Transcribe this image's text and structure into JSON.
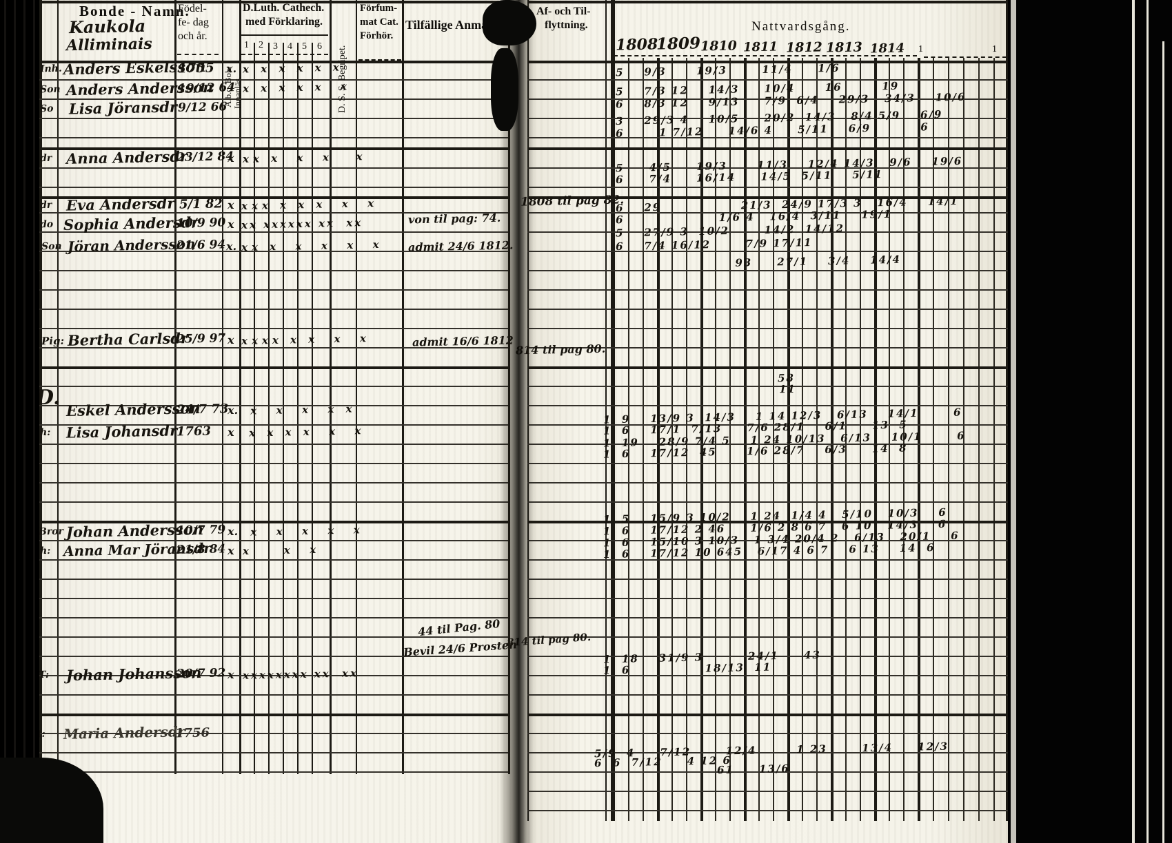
{
  "doc": {
    "headers": {
      "name_col": "Bonde - Namn.",
      "birth_l1": "Födel-",
      "birth_l2": "fe- dag",
      "birth_l3": "och år.",
      "abc_l1": "A.b.c. Bok.",
      "abc_l2": "Innanläs.",
      "cat_l1": "D.Luth. Cathech.",
      "cat_l2": "med Förklaring.",
      "dss": "D. S. S. Begripet.",
      "missed_l1": "Förfum-",
      "missed_l2": "mat Cat.",
      "missed_l3": "Förhör.",
      "remarks": "Tilfällige Anmärkningar",
      "moving_l1": "Af- och Til-",
      "moving_l2": "flyttning.",
      "communion": "Nattvardsgång."
    },
    "grades": [
      "1",
      "2",
      "3",
      "4",
      "5",
      "6"
    ],
    "years": [
      "1808",
      "1809",
      "1810",
      "1811",
      "1812",
      "1813",
      "1814"
    ],
    "extra_year_marks": "1        1        1      1",
    "farm": {
      "line1": "Kaukola",
      "line2": "Alliminais"
    },
    "section_letter": "D.",
    "rows": [
      {
        "m": "Inh.",
        "n": "Anders Eskelsson",
        "b": "1755",
        "abc": "x.",
        "cat": "x x x x x x"
      },
      {
        "m": "Son",
        "n": "Anders Andersson",
        "b": "19/12 64",
        "abc": "",
        "cat": "x x x x x  x"
      },
      {
        "m": "So",
        "n": "Lisa Jöransdr",
        "b": "9/12 66",
        "abc": "",
        "cat": ""
      },
      {
        "m": "dr",
        "n": "Anna Andersdr",
        "b": "23/12 84",
        "abc": "x",
        "cat": "xx x  x  x   x"
      },
      {
        "m": "dr",
        "n": "Eva Andersdr",
        "b": "5/1 82",
        "abc": "x",
        "cat": "xxx x x x  x  x",
        "flytt": "1808 til pag 82."
      },
      {
        "m": "do",
        "n": "Sophia Andersdr",
        "b": "10/9 90",
        "abc": "x",
        "cat": "xx xxxxxx xx  xx",
        "note": "von til pag: 74."
      },
      {
        "m": "Son",
        "n": "Jöran Andersson",
        "b": "21/6 94",
        "abc": "x.",
        "cat": "xx x  x  x  x  x",
        "note": "admit 24/6 1812."
      },
      {
        "m": "Pig:",
        "n": "Bertha Carlsdr",
        "b": "25/9 97",
        "abc": "x",
        "cat": "xxxx x x  x  x",
        "note": "admit 16/6 1812",
        "flytt": "814 til pag 80."
      },
      {
        "m": "",
        "n": "Eskel Andersson",
        "b": "24/7 73",
        "abc": "x.",
        "cat": " x  x  x  x x"
      },
      {
        "m": "h:",
        "n": "Lisa Johansdr",
        "b": "1763",
        "abc": "x",
        "cat": " x x x x  x  x"
      },
      {
        "m": "Bror",
        "n": "Johan Andersson",
        "b": "10/7 79",
        "abc": "x.",
        "cat": " x  x  x  x  x"
      },
      {
        "m": "h:",
        "n": "Anna Mar Jöransdr",
        "b": "21/8 84",
        "abc": "x",
        "cat": "x    x  x"
      },
      {
        "m": "T:",
        "n": "Johan Johansson",
        "b": "20/7 92",
        "abc": "x",
        "cat": "xxxxxxxx xx  xx",
        "note": "44 til Pag. 80",
        "note2": "Bevil 24/6 Prosten",
        "flytt": "814 til pag 80."
      },
      {
        "m": "St:",
        "n": "Maria Andersdr",
        "b": "1756",
        "abc": "",
        "cat": ""
      }
    ],
    "natt": [
      "5    9/3      19/3       11/4     1/6",
      "5    7/3 12    14/3     10/4      16        19",
      "6    8/3 12    9/13     7/9  6/4    29/3   34/3    10/6",
      "3    29/3 4    10/5     20/2  14/3   8/4 5/9    6/9",
      "6       1 7/12     14/6 4     5/11    6/9          6",
      "5     4/5     19/3      11/3    12/4 14/3   9/6    19/6",
      "6     7/4     16/14     14/5  5/11    5/11",
      "6    29                21/3  24/9 17/3 3   16/4    14/1",
      "6                   1/6 4   16/4  3/11    19/1",
      "5    27/9 3  10/2       14/2  14/12",
      "6    7/4 16/12       7/9 17/11",
      "                        93     27/1    3/4    14/4",
      "58",
      "11",
      "1  9    13/9 3  14/3    1 14 12/3   6/13    14/1       6",
      "1  6    17/1  7/13     7/6 28/1    6/1     13  5",
      "1  19    28/9 7/4 5    1 24 10/13   6/13    10/1       6",
      "1  6    17/12  45      1/6 28/7    6/3     14  8",
      "1  5    15/9 3 10/2    1 24  1/4 4   5/10   10/3    6",
      "1  6    17/12 2 46     1/6 2 8 6 7   6 10   14/3    6",
      "1  6    15/10 3 10/3   1 3/4 20/4 2   6/13   20/1    6",
      "1  6    17/12 10 645   6/17 4 6 7    6 13    14  6",
      "1  18    31/9 3         24/1     43",
      "1  6               18/13  11",
      "5/9  4     7/12       12/4        1 23       13/4     12/3",
      "6  6  7/12     4 12 6",
      "61     13/6"
    ]
  }
}
